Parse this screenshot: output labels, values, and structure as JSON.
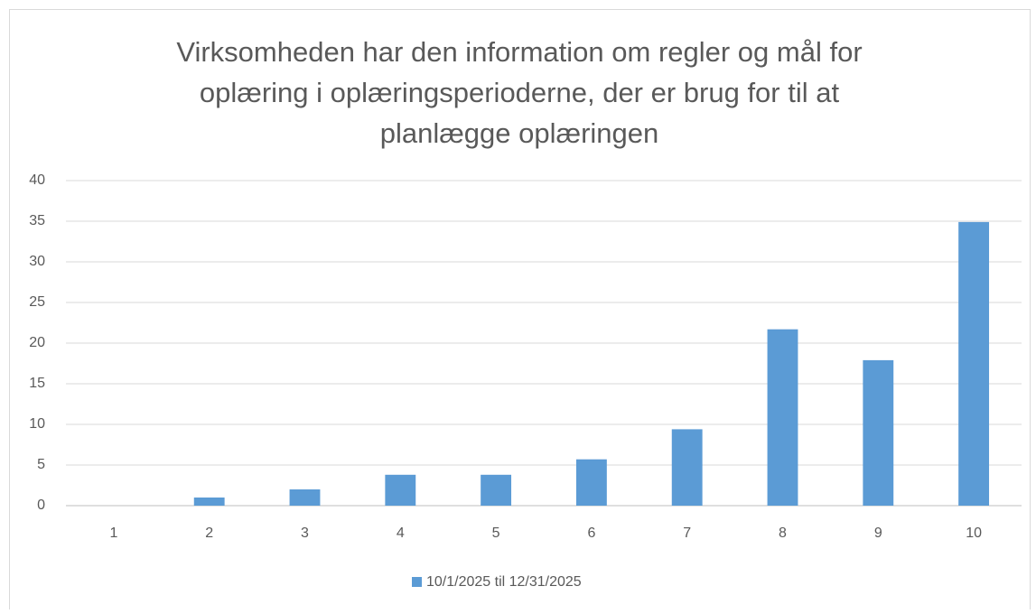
{
  "chart_data": {
    "type": "bar",
    "title": "Virksomheden har den information om regler og mål for oplæring i oplæringsperioderne, der er brug for til at planlægge oplæringen",
    "categories": [
      "1",
      "2",
      "3",
      "4",
      "5",
      "6",
      "7",
      "8",
      "9",
      "10"
    ],
    "series": [
      {
        "name": "10/1/2025 til 12/31/2025",
        "color": "#5b9bd5",
        "values": [
          0,
          1,
          2,
          3.8,
          3.8,
          5.7,
          9.4,
          21.7,
          17.9,
          34.9
        ]
      }
    ],
    "ylim": [
      0,
      40
    ],
    "yticks": [
      0,
      5,
      10,
      15,
      20,
      25,
      30,
      35,
      40
    ],
    "grid": true,
    "legend": "bottom"
  }
}
